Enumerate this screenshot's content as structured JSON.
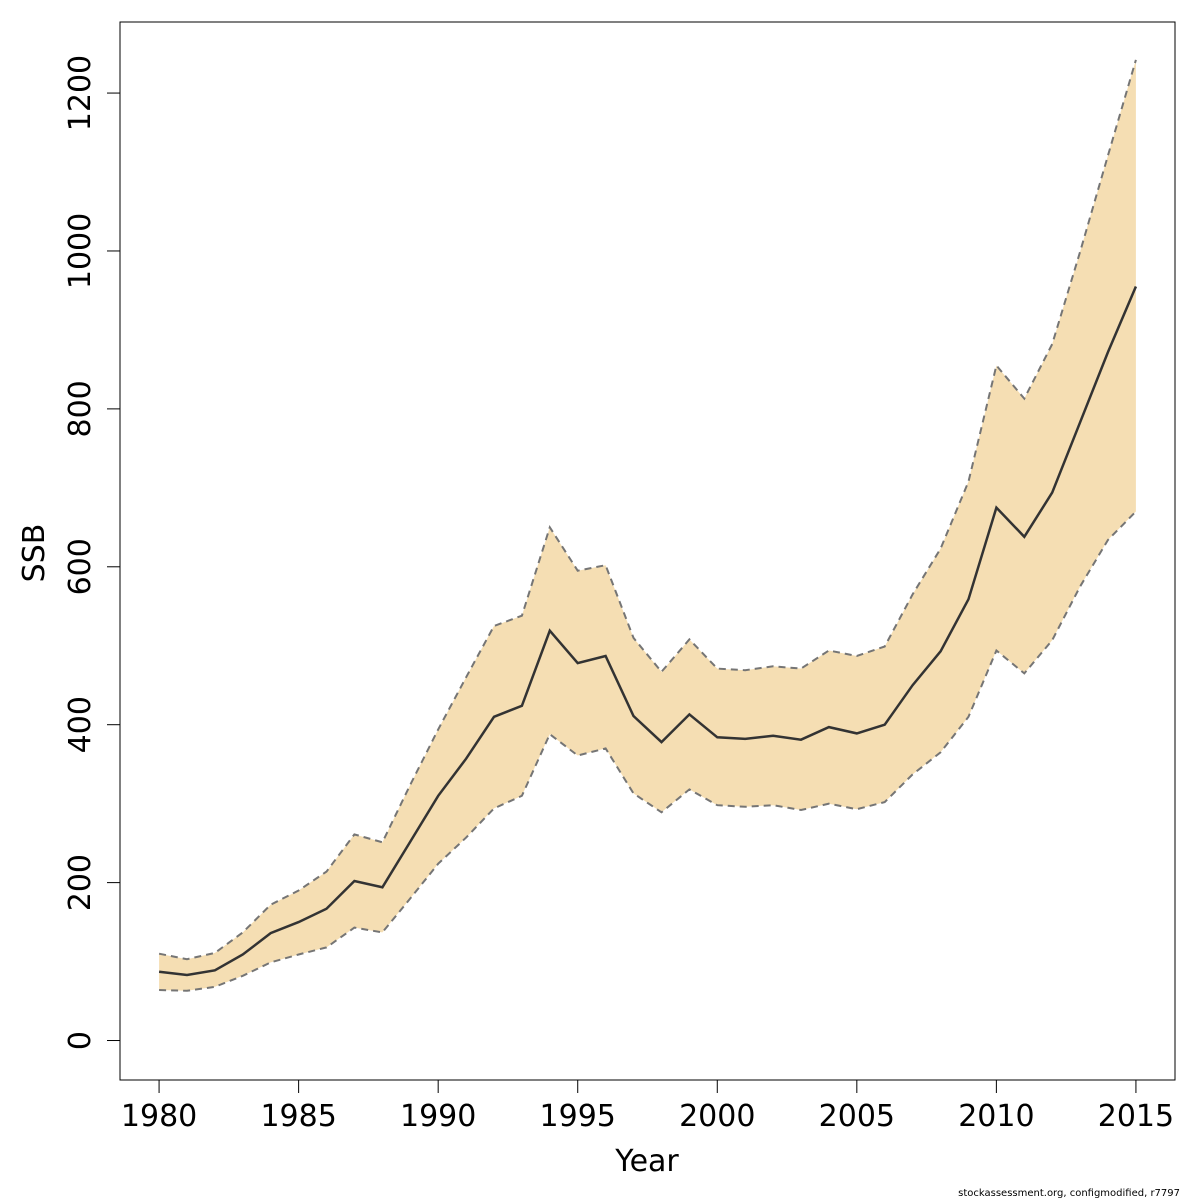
{
  "chart_data": {
    "type": "area",
    "title": "",
    "xlabel": "Year",
    "ylabel": "SSB",
    "xlim": [
      1978.6,
      2016.4
    ],
    "ylim": [
      -50,
      1290
    ],
    "x_ticks": [
      1980,
      1985,
      1990,
      1995,
      2000,
      2005,
      2010,
      2015
    ],
    "y_ticks": [
      0,
      200,
      400,
      600,
      800,
      1000,
      1200
    ],
    "grid": false,
    "legend": "none",
    "colors": {
      "band": "#f5deb3",
      "estimate_line": "#333333",
      "bound_lines": "#757575",
      "axis": "#000000"
    },
    "x": [
      1980,
      1981,
      1982,
      1983,
      1984,
      1985,
      1986,
      1987,
      1988,
      1989,
      1990,
      1991,
      1992,
      1993,
      1994,
      1995,
      1996,
      1997,
      1998,
      1999,
      2000,
      2001,
      2002,
      2003,
      2004,
      2005,
      2006,
      2007,
      2008,
      2009,
      2010,
      2011,
      2012,
      2013,
      2014,
      2015
    ],
    "series": [
      {
        "role": "estimate",
        "values": [
          87,
          83,
          89,
          109,
          136,
          150,
          167,
          202,
          194,
          252,
          310,
          357,
          410,
          424,
          519,
          478,
          487,
          411,
          378,
          413,
          384,
          382,
          386,
          381,
          397,
          389,
          400,
          450,
          493,
          559,
          675,
          638,
          694,
          783,
          872,
          955
        ]
      },
      {
        "role": "upper",
        "values": [
          110,
          103,
          111,
          137,
          172,
          190,
          214,
          261,
          251,
          324,
          394,
          460,
          525,
          538,
          650,
          595,
          602,
          510,
          467,
          508,
          471,
          469,
          474,
          471,
          494,
          487,
          499,
          565,
          623,
          708,
          855,
          813,
          882,
          999,
          1121,
          1242
        ]
      },
      {
        "role": "lower",
        "values": [
          64,
          63,
          68,
          82,
          99,
          109,
          118,
          143,
          137,
          180,
          224,
          257,
          294,
          310,
          388,
          361,
          370,
          313,
          289,
          318,
          298,
          296,
          298,
          292,
          300,
          293,
          302,
          337,
          365,
          410,
          494,
          465,
          507,
          575,
          634,
          670
        ]
      }
    ]
  },
  "footer": {
    "credit": "stockassessment.org, configmodified, r7797"
  }
}
